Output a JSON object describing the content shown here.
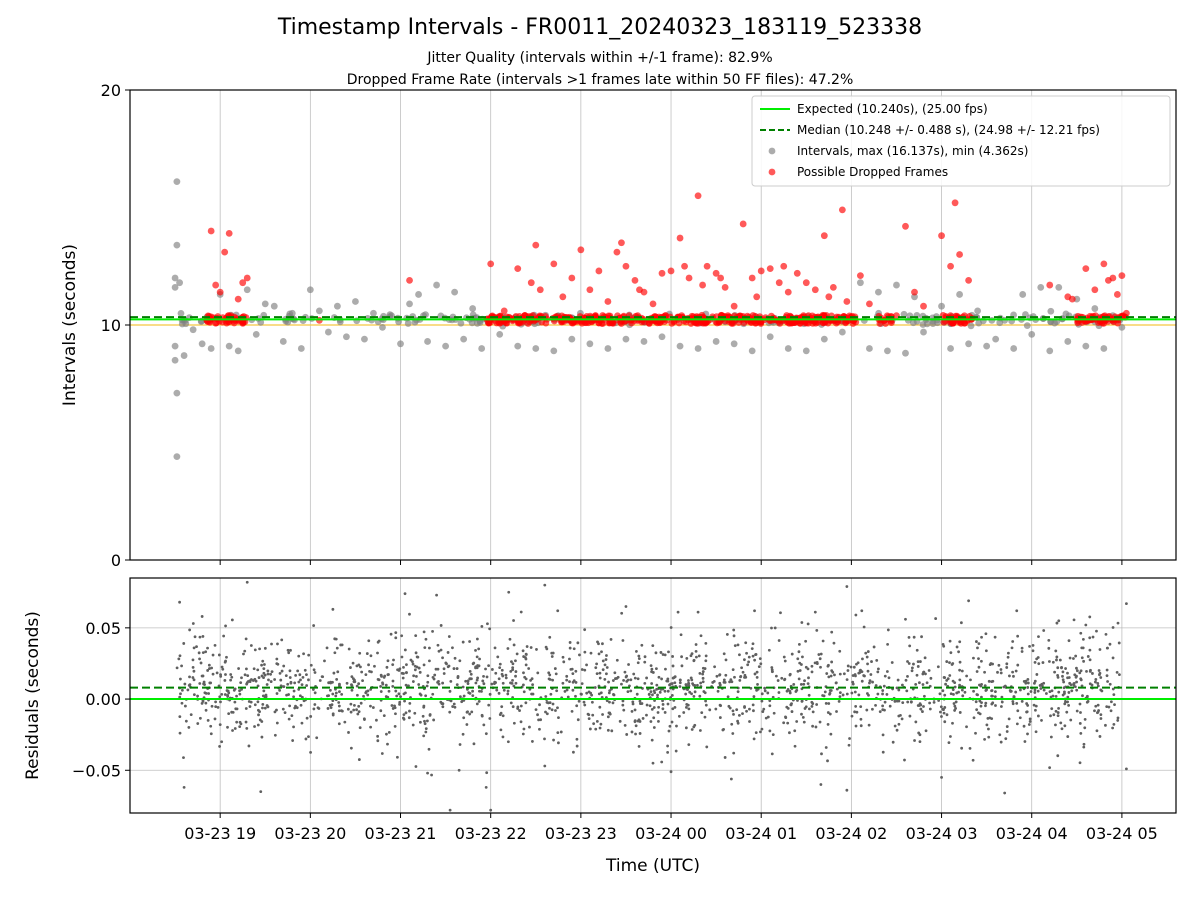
{
  "chart_data": {
    "type": "scatter",
    "title": "Timestamp Intervals - FR0011_20240323_183119_523338",
    "subtitle_lines": [
      "Jitter Quality (intervals within +/-1 frame): 82.9%",
      "Dropped Frame Rate (intervals >1 frames late within 50 FF files): 47.2%"
    ],
    "xlabel": "Time (UTC)",
    "x_ticks": [
      "03-23 19",
      "03-23 20",
      "03-23 21",
      "03-23 22",
      "03-23 23",
      "03-24 00",
      "03-24 01",
      "03-24 02",
      "03-24 03",
      "03-24 04",
      "03-24 05"
    ],
    "x_range_hours": [
      18.0,
      29.6
    ],
    "data_x_range_hours": [
      18.52,
      29.0
    ],
    "grid": true,
    "panels": [
      {
        "name": "intervals",
        "ylabel": "Intervals (seconds)",
        "ylim": [
          0,
          20
        ],
        "yticks": [
          0,
          10,
          20
        ],
        "legend_position": "top-right",
        "expected": {
          "label": "Expected (10.240s), (25.00 fps)",
          "value": 10.24,
          "color": "#00ee00"
        },
        "median": {
          "label": "Median (10.248 +/- 0.488 s), (24.98 +/- 12.21 fps)",
          "value": 10.248,
          "color": "#008000"
        },
        "reference_line": {
          "value": 10.0,
          "color": "#f5c842"
        },
        "series": [
          {
            "name": "Intervals, max (16.137s), min (4.362s)",
            "color": "#808080",
            "baseline": 10.24,
            "points": [
              [
                18.52,
                16.1
              ],
              [
                18.52,
                4.4
              ],
              [
                18.52,
                7.1
              ],
              [
                18.52,
                13.4
              ],
              [
                18.5,
                12.0
              ],
              [
                18.5,
                11.6
              ],
              [
                18.5,
                9.1
              ],
              [
                18.5,
                8.5
              ],
              [
                18.55,
                11.8
              ],
              [
                18.6,
                8.7
              ],
              [
                18.7,
                9.8
              ],
              [
                18.8,
                9.2
              ],
              [
                18.9,
                9.0
              ],
              [
                19.0,
                11.3
              ],
              [
                19.1,
                9.1
              ],
              [
                19.2,
                8.9
              ],
              [
                19.3,
                11.5
              ],
              [
                19.4,
                9.6
              ],
              [
                19.5,
                10.9
              ],
              [
                19.6,
                10.8
              ],
              [
                19.7,
                9.3
              ],
              [
                19.8,
                10.5
              ],
              [
                19.9,
                9.0
              ],
              [
                20.0,
                11.5
              ],
              [
                20.1,
                10.6
              ],
              [
                20.2,
                9.7
              ],
              [
                20.3,
                10.8
              ],
              [
                20.4,
                9.5
              ],
              [
                20.5,
                11.0
              ],
              [
                20.6,
                9.4
              ],
              [
                20.7,
                10.5
              ],
              [
                20.8,
                9.9
              ],
              [
                20.9,
                10.4
              ],
              [
                21.0,
                9.2
              ],
              [
                21.1,
                10.9
              ],
              [
                21.2,
                11.3
              ],
              [
                21.3,
                9.3
              ],
              [
                21.4,
                11.7
              ],
              [
                21.5,
                9.1
              ],
              [
                21.6,
                11.4
              ],
              [
                21.7,
                9.4
              ],
              [
                21.8,
                10.7
              ],
              [
                21.9,
                9.0
              ],
              [
                22.1,
                9.6
              ],
              [
                22.3,
                9.1
              ],
              [
                22.5,
                9.0
              ],
              [
                22.7,
                8.9
              ],
              [
                22.9,
                9.4
              ],
              [
                23.1,
                9.2
              ],
              [
                23.3,
                9.0
              ],
              [
                23.5,
                9.4
              ],
              [
                23.7,
                9.3
              ],
              [
                23.9,
                9.5
              ],
              [
                24.1,
                9.1
              ],
              [
                24.3,
                9.0
              ],
              [
                24.5,
                9.3
              ],
              [
                24.7,
                9.2
              ],
              [
                24.9,
                8.9
              ],
              [
                25.1,
                9.5
              ],
              [
                25.3,
                9.0
              ],
              [
                25.5,
                8.9
              ],
              [
                25.7,
                9.4
              ],
              [
                25.9,
                9.7
              ],
              [
                26.1,
                11.8
              ],
              [
                26.2,
                9.0
              ],
              [
                26.3,
                11.4
              ],
              [
                26.4,
                8.9
              ],
              [
                26.5,
                11.7
              ],
              [
                26.6,
                8.8
              ],
              [
                26.7,
                11.2
              ],
              [
                26.8,
                9.7
              ],
              [
                26.9,
                10.3
              ],
              [
                27.0,
                10.8
              ],
              [
                27.1,
                9.0
              ],
              [
                27.2,
                11.3
              ],
              [
                27.3,
                9.2
              ],
              [
                27.4,
                10.6
              ],
              [
                27.5,
                9.1
              ],
              [
                27.6,
                9.4
              ],
              [
                27.7,
                10.2
              ],
              [
                27.8,
                9.0
              ],
              [
                27.9,
                11.3
              ],
              [
                28.0,
                9.6
              ],
              [
                28.1,
                11.6
              ],
              [
                28.2,
                8.9
              ],
              [
                28.3,
                11.6
              ],
              [
                28.4,
                9.3
              ],
              [
                28.5,
                11.1
              ],
              [
                28.6,
                9.1
              ],
              [
                28.7,
                10.7
              ],
              [
                28.8,
                9.0
              ],
              [
                28.9,
                10.4
              ],
              [
                29.0,
                9.9
              ]
            ]
          },
          {
            "name": "Possible Dropped Frames",
            "color": "#ff0000",
            "baseline": 10.24,
            "points": [
              [
                18.9,
                14.0
              ],
              [
                18.95,
                11.7
              ],
              [
                19.1,
                13.9
              ],
              [
                19.05,
                13.1
              ],
              [
                19.0,
                11.4
              ],
              [
                19.25,
                11.8
              ],
              [
                19.3,
                12.0
              ],
              [
                19.2,
                11.1
              ],
              [
                20.1,
                10.2
              ],
              [
                21.1,
                11.9
              ],
              [
                22.0,
                12.6
              ],
              [
                22.15,
                10.6
              ],
              [
                22.3,
                12.4
              ],
              [
                22.45,
                11.8
              ],
              [
                22.5,
                13.4
              ],
              [
                22.55,
                11.5
              ],
              [
                22.7,
                12.6
              ],
              [
                22.8,
                11.2
              ],
              [
                22.9,
                12.0
              ],
              [
                23.0,
                13.2
              ],
              [
                23.1,
                11.5
              ],
              [
                23.2,
                12.3
              ],
              [
                23.3,
                11.0
              ],
              [
                23.4,
                13.1
              ],
              [
                23.45,
                13.5
              ],
              [
                23.5,
                12.5
              ],
              [
                23.6,
                11.9
              ],
              [
                23.65,
                11.5
              ],
              [
                23.7,
                11.4
              ],
              [
                23.8,
                10.9
              ],
              [
                23.9,
                12.2
              ],
              [
                24.0,
                12.3
              ],
              [
                24.1,
                13.7
              ],
              [
                24.15,
                12.5
              ],
              [
                24.2,
                12.0
              ],
              [
                24.3,
                15.5
              ],
              [
                24.35,
                11.7
              ],
              [
                24.4,
                12.5
              ],
              [
                24.5,
                12.2
              ],
              [
                24.55,
                12.0
              ],
              [
                24.6,
                11.6
              ],
              [
                24.7,
                10.8
              ],
              [
                24.8,
                14.3
              ],
              [
                24.9,
                12.0
              ],
              [
                24.95,
                11.2
              ],
              [
                25.0,
                12.3
              ],
              [
                25.1,
                12.4
              ],
              [
                25.2,
                11.8
              ],
              [
                25.25,
                12.5
              ],
              [
                25.3,
                11.4
              ],
              [
                25.4,
                12.2
              ],
              [
                25.5,
                11.8
              ],
              [
                25.6,
                11.5
              ],
              [
                25.7,
                13.8
              ],
              [
                25.75,
                11.2
              ],
              [
                25.8,
                11.6
              ],
              [
                25.9,
                14.9
              ],
              [
                25.95,
                11.0
              ],
              [
                26.1,
                12.1
              ],
              [
                26.2,
                10.9
              ],
              [
                26.5,
                10.4
              ],
              [
                26.6,
                14.2
              ],
              [
                26.7,
                11.4
              ],
              [
                26.8,
                10.8
              ],
              [
                27.0,
                13.8
              ],
              [
                27.1,
                12.5
              ],
              [
                27.15,
                15.2
              ],
              [
                27.2,
                13.0
              ],
              [
                27.3,
                11.9
              ],
              [
                28.2,
                11.7
              ],
              [
                28.4,
                11.2
              ],
              [
                28.45,
                11.1
              ],
              [
                28.6,
                12.4
              ],
              [
                28.7,
                11.5
              ],
              [
                28.8,
                12.6
              ],
              [
                28.85,
                11.9
              ],
              [
                28.9,
                12.0
              ],
              [
                28.95,
                11.3
              ],
              [
                29.0,
                12.1
              ],
              [
                29.05,
                10.5
              ]
            ]
          }
        ]
      },
      {
        "name": "residuals",
        "ylabel": "Residuals (seconds)",
        "ylim": [
          -0.08,
          0.085
        ],
        "yticks": [
          0.05,
          0.0,
          -0.05
        ],
        "ytick_labels": [
          "0.05",
          "0.00",
          "−0.05"
        ],
        "expected_residual": 0.0,
        "median_residual": 0.008,
        "series": [
          {
            "name": "residuals",
            "color": "#606060",
            "mean": 0.008,
            "spread": 0.019,
            "extremes": [
              [
                18.55,
                0.068
              ],
              [
                18.6,
                -0.062
              ],
              [
                18.8,
                0.058
              ],
              [
                19.3,
                0.082
              ],
              [
                19.45,
                -0.065
              ],
              [
                20.25,
                0.063
              ],
              [
                21.05,
                0.074
              ],
              [
                21.4,
                0.073
              ],
              [
                21.3,
                -0.052
              ],
              [
                21.55,
                -0.078
              ],
              [
                21.65,
                -0.05
              ],
              [
                21.95,
                -0.062
              ],
              [
                22.0,
                -0.078
              ],
              [
                22.2,
                0.075
              ],
              [
                22.6,
                0.08
              ],
              [
                22.6,
                -0.047
              ],
              [
                23.5,
                0.065
              ],
              [
                23.8,
                -0.045
              ],
              [
                24.0,
                -0.051
              ],
              [
                24.3,
                0.061
              ],
              [
                24.6,
                -0.041
              ],
              [
                25.6,
                0.061
              ],
              [
                25.95,
                0.079
              ],
              [
                25.95,
                -0.064
              ],
              [
                26.05,
                0.059
              ],
              [
                26.6,
                0.056
              ],
              [
                27.0,
                -0.055
              ],
              [
                27.3,
                0.069
              ],
              [
                27.35,
                -0.043
              ],
              [
                27.7,
                -0.066
              ],
              [
                28.3,
                0.055
              ],
              [
                28.6,
                0.052
              ],
              [
                29.05,
                0.067
              ],
              [
                29.05,
                -0.049
              ]
            ]
          }
        ]
      }
    ]
  }
}
